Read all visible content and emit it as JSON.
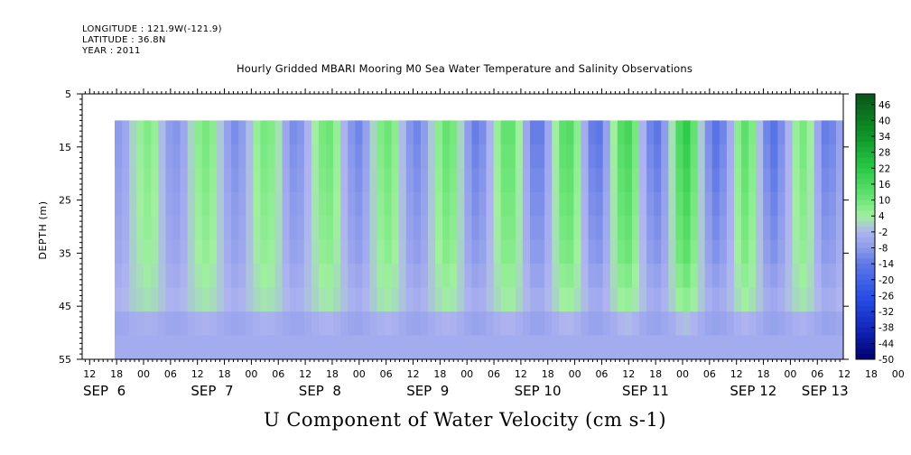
{
  "header": {
    "longitude": "LONGITUDE : 121.9W(-121.9)",
    "latitude": "LATITUDE : 36.8N",
    "year": "YEAR : 2011"
  },
  "chart_data": {
    "type": "heatmap",
    "title": "Hourly Gridded MBARI Mooring M0 Sea Water Temperature and Salinity Observations",
    "xlabel": "U Component of Water Velocity (cm s-1)",
    "ylabel": "DEPTH (m)",
    "ylim": [
      55,
      5
    ],
    "yticks": [
      5,
      15,
      25,
      35,
      45,
      55
    ],
    "data_depth_range": [
      10,
      55
    ],
    "x_hour_ticks": [
      "12",
      "18",
      "00",
      "06",
      "12",
      "18",
      "00",
      "06",
      "12",
      "18",
      "00",
      "06",
      "12",
      "18",
      "00",
      "06",
      "12",
      "18",
      "00",
      "06",
      "12",
      "18",
      "00",
      "06",
      "12",
      "18",
      "00",
      "06",
      "12",
      "18",
      "00",
      "06"
    ],
    "x_day_labels": [
      "SEP  6",
      "SEP  7",
      "SEP  8",
      "SEP  9",
      "SEP 10",
      "SEP 11",
      "SEP 12",
      "SEP 13"
    ],
    "colorbar": {
      "min": -50,
      "max": 50,
      "tick_labels": [
        "46",
        "40",
        "34",
        "28",
        "22",
        "16",
        "10",
        "4",
        "-2",
        "-8",
        "-14",
        "-20",
        "-26",
        "-32",
        "-38",
        "-44",
        "-50"
      ]
    },
    "time_profile": [
      -6,
      -4,
      1,
      4,
      6,
      4,
      -1,
      -6,
      -7,
      -4,
      1,
      5,
      7,
      5,
      0,
      -5,
      -8,
      -6,
      -1,
      4,
      7,
      6,
      2,
      -4,
      -8,
      -7,
      -2,
      3,
      7,
      8,
      4,
      -2,
      -7,
      -9,
      -5,
      1,
      6,
      8,
      5,
      -1,
      -7,
      -9,
      -6,
      0,
      5,
      9,
      7,
      1,
      -6,
      -10,
      -8,
      -2,
      4,
      9,
      9,
      3,
      -4,
      -10,
      -10,
      -4,
      3,
      10,
      11,
      5,
      -3,
      -10,
      -11,
      -5,
      3,
      11,
      13,
      7,
      -2,
      -9,
      -11,
      -6,
      2,
      12,
      16,
      9,
      0,
      -8,
      -12,
      -9,
      -3,
      5,
      10,
      6,
      -1,
      -9,
      -12,
      -8,
      -2,
      4,
      7,
      3,
      -4,
      -10,
      -9,
      -5
    ],
    "depth_profile": [
      1.3,
      1.2,
      1.1,
      1.0,
      0.9,
      0.8,
      0.6,
      0.4,
      0.2,
      0.0
    ]
  }
}
